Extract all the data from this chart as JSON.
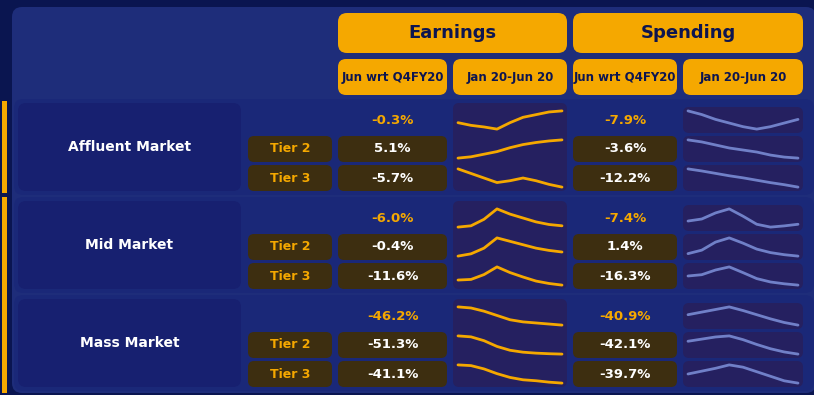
{
  "bg_color": "#0a1550",
  "bg_color2": "#0d1a6e",
  "cell_bg": "#1e2d7a",
  "cell_dark": "#2a3a8a",
  "tier_bg": "#3d2e10",
  "header_yellow": "#f5a800",
  "text_white": "#ffffff",
  "text_yellow": "#f5a800",
  "text_dark": "#0d1550",
  "gold_line": "#f5a800",
  "blue_line": "#7080c8",
  "spark_bg": "#252060",
  "col_headers_sub": [
    "Jun wrt Q4FY20",
    "Jan 20-Jun 20",
    "Jun wrt Q4FY20",
    "Jan 20-Jun 20"
  ],
  "row_groups": [
    "Mass Market",
    "Mid Market",
    "Affluent Market"
  ],
  "tiers": [
    "Tier 2",
    "Tier 3"
  ],
  "earnings_values": [
    [
      "-46.2%",
      "-51.3%",
      "-41.1%"
    ],
    [
      "-6.0%",
      "-0.4%",
      "-11.6%"
    ],
    [
      "-0.3%",
      "5.1%",
      "-5.7%"
    ]
  ],
  "spending_values": [
    [
      "-40.9%",
      "-42.1%",
      "-39.7%"
    ],
    [
      "-7.4%",
      "1.4%",
      "-16.3%"
    ],
    [
      "-7.9%",
      "-3.6%",
      "-12.2%"
    ]
  ],
  "earn_sparks": [
    [
      [
        0.9,
        0.85,
        0.7,
        0.5,
        0.3,
        0.2,
        0.15,
        0.1,
        0.05
      ],
      [
        0.95,
        0.9,
        0.7,
        0.4,
        0.2,
        0.1,
        0.05,
        0.02,
        0.0
      ],
      [
        0.85,
        0.82,
        0.68,
        0.48,
        0.32,
        0.22,
        0.18,
        0.12,
        0.08
      ]
    ],
    [
      [
        0.3,
        0.35,
        0.6,
        1.0,
        0.8,
        0.65,
        0.5,
        0.4,
        0.35
      ],
      [
        0.2,
        0.3,
        0.55,
        1.0,
        0.85,
        0.7,
        0.55,
        0.45,
        0.38
      ],
      [
        0.35,
        0.38,
        0.62,
        1.0,
        0.72,
        0.5,
        0.3,
        0.18,
        0.1
      ]
    ],
    [
      [
        0.5,
        0.45,
        0.42,
        0.38,
        0.5,
        0.6,
        0.65,
        0.7,
        0.72
      ],
      [
        0.3,
        0.35,
        0.45,
        0.55,
        0.7,
        0.82,
        0.9,
        0.96,
        1.0
      ],
      [
        0.55,
        0.5,
        0.45,
        0.4,
        0.42,
        0.45,
        0.42,
        0.38,
        0.35
      ]
    ]
  ],
  "spend_sparks": [
    [
      [
        0.8,
        0.85,
        0.9,
        0.95,
        0.88,
        0.8,
        0.72,
        0.65,
        0.6
      ],
      [
        0.82,
        0.86,
        0.9,
        0.92,
        0.85,
        0.76,
        0.68,
        0.62,
        0.58
      ],
      [
        0.78,
        0.83,
        0.88,
        0.94,
        0.9,
        0.82,
        0.74,
        0.66,
        0.62
      ]
    ],
    [
      [
        0.7,
        0.75,
        0.9,
        1.0,
        0.82,
        0.62,
        0.55,
        0.58,
        0.62
      ],
      [
        0.55,
        0.65,
        0.88,
        1.0,
        0.85,
        0.68,
        0.58,
        0.52,
        0.48
      ],
      [
        0.65,
        0.7,
        0.88,
        1.0,
        0.78,
        0.55,
        0.42,
        0.35,
        0.3
      ]
    ],
    [
      [
        0.65,
        0.62,
        0.58,
        0.55,
        0.52,
        0.5,
        0.52,
        0.55,
        0.58
      ],
      [
        0.6,
        0.58,
        0.55,
        0.52,
        0.5,
        0.48,
        0.45,
        0.43,
        0.42
      ],
      [
        0.68,
        0.62,
        0.55,
        0.48,
        0.42,
        0.35,
        0.28,
        0.22,
        0.15
      ]
    ]
  ]
}
